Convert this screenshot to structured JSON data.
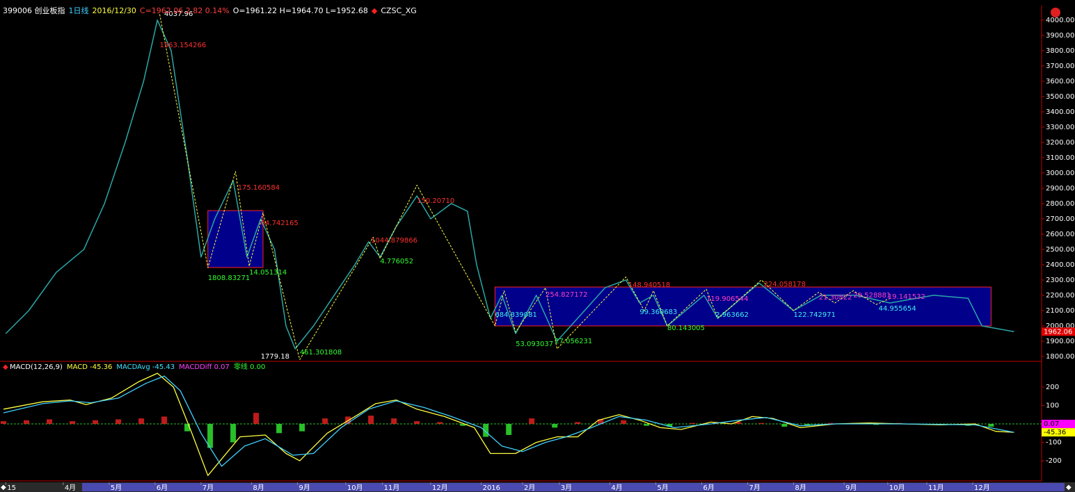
{
  "header": [
    {
      "text": "399006 创业板指",
      "color": "#ffffff"
    },
    {
      "text": "1日线",
      "color": "#40d0ff"
    },
    {
      "text": "2016/12/30",
      "color": "#ffff40"
    },
    {
      "text": "C=1962.06 2.82 0.14%",
      "color": "#ff4040"
    },
    {
      "text": "O=1961.22 H=1964.70 L=1952.68",
      "color": "#ffffff"
    },
    {
      "text": "◆",
      "color": "#ff2020"
    },
    {
      "text": "CZSC_XG",
      "color": "#ffffff"
    }
  ],
  "chart_data": [
    {
      "type": "line",
      "xlim": [
        0,
        452
      ],
      "ylim": [
        1768,
        4095
      ],
      "xticks": [
        {
          "value": 1,
          "label": "15"
        },
        {
          "value": 26,
          "label": "4月"
        },
        {
          "value": 46,
          "label": "5月"
        },
        {
          "value": 66,
          "label": "6月"
        },
        {
          "value": 86,
          "label": "7月"
        },
        {
          "value": 108,
          "label": "8月"
        },
        {
          "value": 128,
          "label": "9月"
        },
        {
          "value": 149,
          "label": "10月"
        },
        {
          "value": 165,
          "label": "11月"
        },
        {
          "value": 186,
          "label": "12月"
        },
        {
          "value": 208,
          "label": "2016"
        },
        {
          "value": 226,
          "label": "2月"
        },
        {
          "value": 242,
          "label": "3月"
        },
        {
          "value": 264,
          "label": "4月"
        },
        {
          "value": 284,
          "label": "5月"
        },
        {
          "value": 304,
          "label": "6月"
        },
        {
          "value": 324,
          "label": "7月"
        },
        {
          "value": 344,
          "label": "8月"
        },
        {
          "value": 366,
          "label": "9月"
        },
        {
          "value": 385,
          "label": "10月"
        },
        {
          "value": 402,
          "label": "11月"
        },
        {
          "value": 422,
          "label": "12月"
        }
      ],
      "yticks": [
        {
          "value": 1800,
          "label": "1800.00"
        },
        {
          "value": 1900,
          "label": "1900.00"
        },
        {
          "value": 2000,
          "label": "2000.00"
        },
        {
          "value": 2100,
          "label": "2100.00"
        },
        {
          "value": 2200,
          "label": "2200.00"
        },
        {
          "value": 2300,
          "label": "2300.00"
        },
        {
          "value": 2400,
          "label": "2400.00"
        },
        {
          "value": 2500,
          "label": "2500.00"
        },
        {
          "value": 2600,
          "label": "2600.00"
        },
        {
          "value": 2700,
          "label": "2700.00"
        },
        {
          "value": 2800,
          "label": "2800.00"
        },
        {
          "value": 2900,
          "label": "2900.00"
        },
        {
          "value": 3000,
          "label": "3000.00"
        },
        {
          "value": 3100,
          "label": "3100.00"
        },
        {
          "value": 3200,
          "label": "3200.00"
        },
        {
          "value": 3300,
          "label": "3300.00"
        },
        {
          "value": 3400,
          "label": "3400.00"
        },
        {
          "value": 3500,
          "label": "3500.00"
        },
        {
          "value": 3600,
          "label": "3600.00"
        },
        {
          "value": 3700,
          "label": "3700.00"
        },
        {
          "value": 3800,
          "label": "3800.00"
        },
        {
          "value": 3900,
          "label": "3900.00"
        },
        {
          "value": 4000,
          "label": "4000.00"
        }
      ],
      "boxes": [
        {
          "x0": 89,
          "x1": 113,
          "y0": 2382,
          "y1": 2754,
          "color": "#0000c0",
          "edge": "#ff2020"
        },
        {
          "x0": 214,
          "x1": 430,
          "y0": 2000,
          "y1": 2254,
          "color": "#0000c0",
          "edge": "#ff2020"
        }
      ],
      "series": [
        {
          "color": "#2aa7a7",
          "width": 1.5,
          "x": [
            1,
            11,
            23,
            35,
            44,
            53,
            61,
            67,
            73,
            80,
            86,
            92,
            100,
            106,
            112,
            118,
            123,
            127,
            135,
            144,
            153,
            159,
            164,
            171,
            180,
            186,
            195,
            202,
            206,
            212,
            217,
            223,
            232,
            241,
            250,
            262,
            271,
            277,
            283,
            289,
            305,
            311,
            329,
            344,
            356,
            371,
            386,
            405,
            420,
            426,
            440
          ],
          "values": [
            1950,
            2100,
            2350,
            2500,
            2800,
            3200,
            3600,
            4000,
            3800,
            3100,
            2450,
            2700,
            2950,
            2450,
            2700,
            2500,
            2000,
            1850,
            2000,
            2200,
            2400,
            2550,
            2450,
            2650,
            2850,
            2700,
            2800,
            2750,
            2400,
            2050,
            2200,
            1950,
            2200,
            1900,
            2050,
            2250,
            2300,
            2150,
            2200,
            2000,
            2200,
            2050,
            2280,
            2100,
            2200,
            2200,
            2150,
            2200,
            2180,
            2000,
            1962.06
          ]
        },
        {
          "color": "#ffff40",
          "width": 1,
          "dash": true,
          "x": [
            68,
            89,
            101,
            107,
            113,
            129,
            161,
            164,
            180,
            214,
            218,
            223,
            236,
            241,
            271,
            279,
            283,
            289,
            306,
            311,
            330,
            344,
            355,
            362,
            370,
            380,
            386
          ],
          "values": [
            4038,
            2380,
            3010,
            2390,
            2740,
            1780,
            2580,
            2440,
            2920,
            2000,
            2230,
            1960,
            2250,
            1850,
            2320,
            2100,
            2230,
            2000,
            2240,
            2050,
            2300,
            2100,
            2220,
            2150,
            2230,
            2140,
            2180
          ]
        }
      ],
      "annotations": [
        {
          "text": "4037.96",
          "x": 70,
          "y": 4040,
          "color": "#ffffff"
        },
        {
          "text": "1563.154266",
          "x": 68,
          "y": 3836,
          "color": "#ff3030"
        },
        {
          "text": "175.160584",
          "x": 102,
          "y": 2905,
          "color": "#ff3030"
        },
        {
          "text": "64.742165",
          "x": 112,
          "y": 2673,
          "color": "#ff3030"
        },
        {
          "text": "1808.83271",
          "x": 89,
          "y": 2314,
          "color": "#30ff30"
        },
        {
          "text": "14.051314",
          "x": 107,
          "y": 2350,
          "color": "#30ff30"
        },
        {
          "text": "1779.18",
          "x": 112,
          "y": 1800,
          "color": "#ffffff"
        },
        {
          "text": "461.301808",
          "x": 129,
          "y": 1827,
          "color": "#30ff30"
        },
        {
          "text": "1044.879866",
          "x": 160,
          "y": 2559,
          "color": "#ff3030"
        },
        {
          "text": "4.776052",
          "x": 164,
          "y": 2423,
          "color": "#30ff30"
        },
        {
          "text": "150.20710",
          "x": 180,
          "y": 2818,
          "color": "#ff3030"
        },
        {
          "text": "684.839081",
          "x": 214,
          "y": 2073,
          "color": "#40f0f0"
        },
        {
          "text": "53.093037",
          "x": 223,
          "y": 1882,
          "color": "#30ff30"
        },
        {
          "text": "254.827172",
          "x": 236,
          "y": 2205,
          "color": "#ff40c0"
        },
        {
          "text": "27.056231",
          "x": 240,
          "y": 1900,
          "color": "#30ff30"
        },
        {
          "text": "148.940518",
          "x": 272,
          "y": 2268,
          "color": "#ff3030"
        },
        {
          "text": "99.360683",
          "x": 277,
          "y": 2091,
          "color": "#40f0f0"
        },
        {
          "text": "80.143005",
          "x": 289,
          "y": 1986,
          "color": "#30ff30"
        },
        {
          "text": "119.906544",
          "x": 306,
          "y": 2177,
          "color": "#ff40c0"
        },
        {
          "text": "2.963662",
          "x": 310,
          "y": 2073,
          "color": "#40f0f0"
        },
        {
          "text": "224.058178",
          "x": 331,
          "y": 2273,
          "color": "#ff3030"
        },
        {
          "text": "122.742971",
          "x": 344,
          "y": 2073,
          "color": "#40f0f0"
        },
        {
          "text": "21.30822",
          "x": 355,
          "y": 2186,
          "color": "#ff40c0"
        },
        {
          "text": "29.528881",
          "x": 370,
          "y": 2200,
          "color": "#ff40c0"
        },
        {
          "text": "44.955654",
          "x": 381,
          "y": 2114,
          "color": "#40f0f0"
        },
        {
          "text": "19.141532",
          "x": 385,
          "y": 2191,
          "color": "#ff40c0"
        }
      ],
      "badges": [
        {
          "value": 1962.06,
          "label": "1962.06",
          "color": "#e00000",
          "text_color": "#ffffff"
        }
      ]
    },
    {
      "type": "line",
      "xlim": [
        0,
        452
      ],
      "ylim": [
        -309,
        332
      ],
      "yticks": [
        200,
        100,
        -100,
        -200
      ],
      "legend": [
        {
          "text": "MACD(12,26,9)",
          "color": "#ffffff"
        },
        {
          "text": "MACD -45.36",
          "color": "#ffff40"
        },
        {
          "text": "MACDAvg -45.43",
          "color": "#40e0ff"
        },
        {
          "text": "MACDDiff 0.07",
          "color": "#ff40ff"
        },
        {
          "text": "零线 0.00",
          "color": "#30ff30"
        }
      ],
      "zero_line": {
        "value": 0,
        "color": "#30c030"
      },
      "histogram": {
        "up_color": "#e02020",
        "down_color": "#30e030",
        "x": [
          0,
          10,
          20,
          30,
          40,
          50,
          60,
          70,
          80,
          90,
          100,
          110,
          120,
          130,
          140,
          150,
          160,
          170,
          180,
          190,
          200,
          210,
          220,
          230,
          240,
          250,
          260,
          270,
          280,
          290,
          300,
          310,
          320,
          330,
          340,
          350,
          360,
          370,
          380,
          390,
          400,
          410,
          420,
          430,
          440
        ],
        "values": [
          15,
          20,
          25,
          15,
          20,
          25,
          30,
          40,
          -40,
          -130,
          -100,
          60,
          -50,
          -40,
          30,
          40,
          45,
          30,
          15,
          10,
          -10,
          -70,
          -60,
          30,
          -20,
          10,
          25,
          20,
          -10,
          -15,
          5,
          10,
          10,
          5,
          -15,
          -10,
          5,
          5,
          -5,
          5,
          0,
          -5,
          -10,
          -15,
          0.07
        ]
      },
      "series": [
        {
          "color": "#ffff40",
          "width": 1.3,
          "x": [
            0,
            17,
            29,
            36,
            47,
            59,
            67,
            74,
            82,
            89,
            95,
            103,
            114,
            123,
            129,
            141,
            153,
            162,
            171,
            180,
            192,
            205,
            212,
            223,
            232,
            241,
            250,
            259,
            268,
            277,
            286,
            295,
            308,
            317,
            326,
            335,
            347,
            362,
            377,
            392,
            408,
            423,
            432,
            440
          ],
          "values": [
            80,
            120,
            130,
            105,
            140,
            230,
            275,
            200,
            -50,
            -280,
            -190,
            -70,
            -60,
            -160,
            -200,
            -50,
            40,
            110,
            130,
            80,
            40,
            -20,
            -160,
            -160,
            -100,
            -70,
            -70,
            20,
            50,
            20,
            -20,
            -30,
            10,
            0,
            40,
            30,
            -20,
            0,
            5,
            0,
            -5,
            0,
            -40,
            -45.36
          ]
        },
        {
          "color": "#40d0ff",
          "width": 1.3,
          "x": [
            0,
            17,
            29,
            38,
            50,
            62,
            70,
            77,
            86,
            95,
            105,
            114,
            126,
            135,
            147,
            159,
            171,
            183,
            195,
            208,
            217,
            226,
            236,
            245,
            256,
            268,
            280,
            292,
            308,
            320,
            332,
            347,
            362,
            392,
            423,
            440
          ],
          "values": [
            60,
            110,
            125,
            115,
            140,
            220,
            260,
            180,
            -50,
            -230,
            -120,
            -80,
            -170,
            -160,
            -20,
            80,
            125,
            90,
            40,
            -20,
            -120,
            -150,
            -100,
            -70,
            -20,
            40,
            20,
            -20,
            0,
            20,
            35,
            -10,
            0,
            0,
            -5,
            -45.43
          ]
        }
      ],
      "badges": [
        {
          "value": 0.07,
          "label": "0.07",
          "color": "#ff00ff",
          "text_color": "#000000"
        },
        {
          "value": -45.36,
          "label": "-45.36",
          "color": "#ffff00",
          "text_color": "#000000"
        }
      ]
    }
  ]
}
